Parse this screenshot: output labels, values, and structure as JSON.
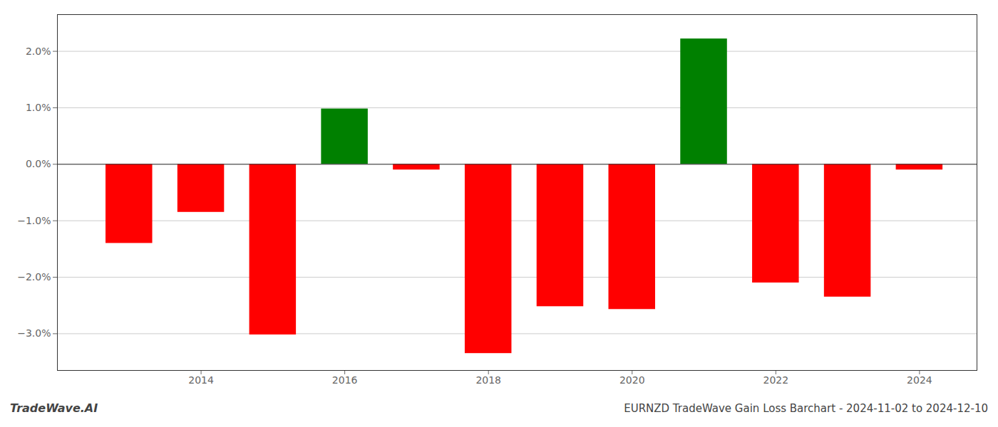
{
  "chart_data": {
    "type": "bar",
    "title": "EURNZD TradeWave Gain Loss Barchart - 2024-11-02 to 2024-12-10",
    "annotations": [
      "TradeWave.AI"
    ],
    "x": [
      2013,
      2014,
      2015,
      2016,
      2017,
      2018,
      2019,
      2020,
      2021,
      2022,
      2023,
      2024
    ],
    "values": [
      -1.4,
      -0.85,
      -3.02,
      0.98,
      -0.1,
      -3.35,
      -2.52,
      -2.57,
      2.22,
      -2.1,
      -2.35,
      -0.1
    ],
    "colors": [
      "#ff0000",
      "#ff0000",
      "#ff0000",
      "#008000",
      "#ff0000",
      "#ff0000",
      "#ff0000",
      "#ff0000",
      "#008000",
      "#ff0000",
      "#ff0000",
      "#ff0000"
    ],
    "xlim": [
      2012,
      2024.8
    ],
    "xticks": [
      2014,
      2016,
      2018,
      2020,
      2022,
      2024
    ],
    "ylim": [
      -3.65,
      2.65
    ],
    "yticks": [
      {
        "value": -3.0,
        "label": "−3.0%"
      },
      {
        "value": -2.0,
        "label": "−2.0%"
      },
      {
        "value": -1.0,
        "label": "−1.0%"
      },
      {
        "value": 0.0,
        "label": "0.0%"
      },
      {
        "value": 1.0,
        "label": "1.0%"
      },
      {
        "value": 2.0,
        "label": "2.0%"
      }
    ],
    "grid": true
  }
}
